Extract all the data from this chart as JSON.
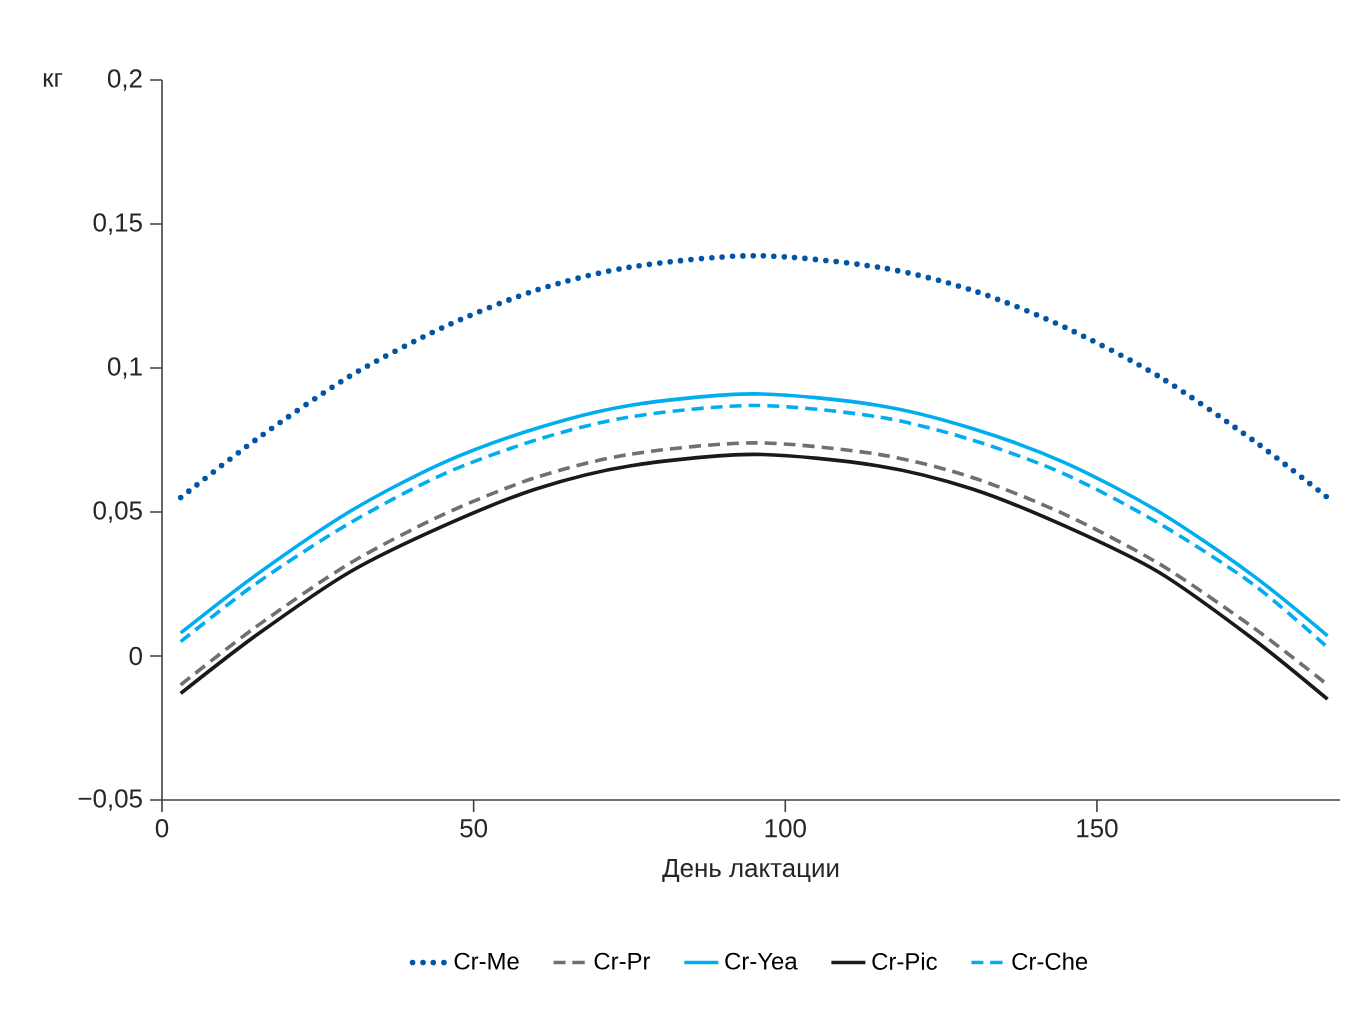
{
  "chart_data": {
    "type": "line",
    "xlabel": "День лактации",
    "ylabel": "кг",
    "x": [
      3,
      15,
      30,
      45,
      60,
      75,
      95,
      115,
      130,
      145,
      160,
      175,
      187
    ],
    "xlim": [
      0,
      189
    ],
    "xticks": [
      0,
      50,
      100,
      150
    ],
    "ylim": [
      -0.05,
      0.2
    ],
    "yticks": [
      {
        "value": -0.05,
        "label": "−0,05"
      },
      {
        "value": 0,
        "label": "0"
      },
      {
        "value": 0.05,
        "label": "0,05"
      },
      {
        "value": 0.1,
        "label": "0,1"
      },
      {
        "value": 0.15,
        "label": "0,15"
      },
      {
        "value": 0.2,
        "label": "0,2"
      }
    ],
    "legend": "bottom",
    "grid": false,
    "marker": "none",
    "series": [
      {
        "name": "Cr-Me",
        "color": "#0055a5",
        "line_style": "dotted",
        "values": [
          0.055,
          0.075,
          0.097,
          0.114,
          0.127,
          0.135,
          0.139,
          0.135,
          0.127,
          0.114,
          0.097,
          0.075,
          0.055
        ]
      },
      {
        "name": "Cr-Pr",
        "color": "#707070",
        "line_style": "dashed",
        "values": [
          -0.01,
          0.01,
          0.032,
          0.049,
          0.062,
          0.07,
          0.074,
          0.07,
          0.062,
          0.049,
          0.032,
          0.01,
          -0.01
        ]
      },
      {
        "name": "Cr-Yea",
        "color": "#00aeef",
        "line_style": "solid",
        "values": [
          0.008,
          0.028,
          0.05,
          0.067,
          0.079,
          0.087,
          0.091,
          0.087,
          0.079,
          0.067,
          0.05,
          0.028,
          0.007
        ]
      },
      {
        "name": "Cr-Pic",
        "color": "#1a1a1a",
        "line_style": "solid",
        "values": [
          -0.013,
          0.007,
          0.029,
          0.045,
          0.058,
          0.066,
          0.07,
          0.066,
          0.058,
          0.045,
          0.029,
          0.006,
          -0.015
        ]
      },
      {
        "name": "Cr-Che",
        "color": "#00aeef",
        "line_style": "dashed",
        "values": [
          0.005,
          0.025,
          0.046,
          0.063,
          0.075,
          0.083,
          0.087,
          0.083,
          0.075,
          0.063,
          0.046,
          0.025,
          0.003
        ]
      }
    ]
  }
}
